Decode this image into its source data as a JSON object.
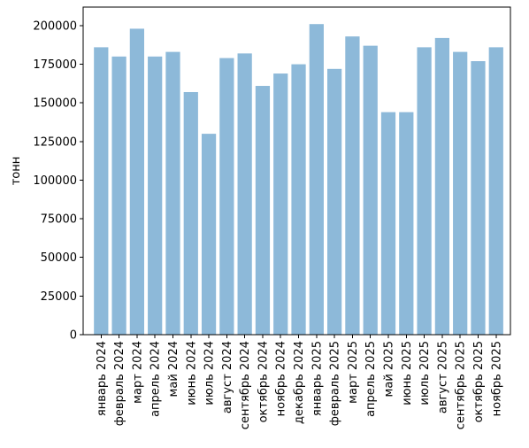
{
  "chart_data": {
    "type": "bar",
    "title": "",
    "xlabel": "",
    "ylabel": "тонн",
    "ylim": [
      0,
      212000
    ],
    "yticks": [
      0,
      25000,
      50000,
      75000,
      100000,
      125000,
      150000,
      175000,
      200000
    ],
    "ytick_labels": [
      "0",
      "25000",
      "50000",
      "75000",
      "100000",
      "125000",
      "150000",
      "175000",
      "200000"
    ],
    "grid": false,
    "legend": "none",
    "bar_color": "#8db9d9",
    "categories": [
      "январь 2024",
      "февраль 2024",
      "март 2024",
      "апрель 2024",
      "май 2024",
      "июнь 2024",
      "июль 2024",
      "август 2024",
      "сентябрь 2024",
      "октябрь 2024",
      "ноябрь 2024",
      "декабрь 2024",
      "январь 2025",
      "февраль 2025",
      "март 2025",
      "апрель 2025",
      "май 2025",
      "июнь 2025",
      "июль 2025",
      "август 2025",
      "сентябрь 2025",
      "октябрь 2025",
      "ноябрь 2025"
    ],
    "values": [
      186000,
      180000,
      198000,
      180000,
      183000,
      157000,
      130000,
      179000,
      182000,
      161000,
      169000,
      175000,
      201000,
      172000,
      193000,
      187000,
      144000,
      144000,
      186000,
      192000,
      183000,
      177000,
      186000
    ]
  }
}
